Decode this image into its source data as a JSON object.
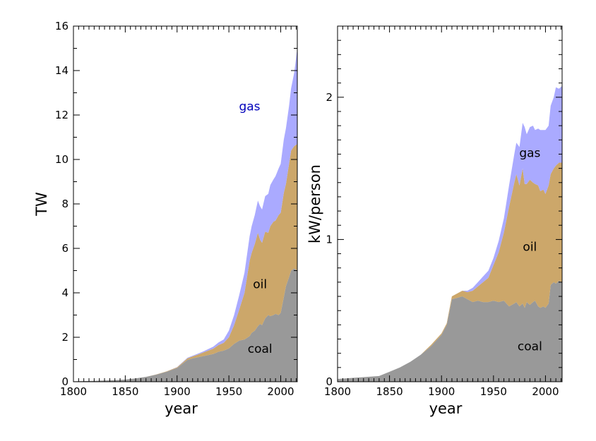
{
  "chart_data": [
    {
      "type": "area",
      "stacked": true,
      "xlabel": "year",
      "ylabel": "TW",
      "xlim": [
        1800,
        2016
      ],
      "ylim": [
        0,
        16
      ],
      "xticks": [
        1800,
        1850,
        1900,
        1950,
        2000
      ],
      "yticks": [
        0,
        2,
        4,
        6,
        8,
        10,
        12,
        14,
        16
      ],
      "x": [
        1800,
        1820,
        1840,
        1850,
        1860,
        1870,
        1880,
        1890,
        1900,
        1905,
        1910,
        1915,
        1920,
        1925,
        1930,
        1935,
        1940,
        1945,
        1950,
        1955,
        1960,
        1965,
        1970,
        1972,
        1975,
        1978,
        1980,
        1982,
        1985,
        1988,
        1990,
        1993,
        1995,
        1998,
        2000,
        2003,
        2005,
        2008,
        2010,
        2013,
        2016
      ],
      "series": [
        {
          "name": "coal",
          "color": "#999999",
          "values": [
            0.02,
            0.04,
            0.07,
            0.1,
            0.15,
            0.22,
            0.32,
            0.45,
            0.62,
            0.8,
            0.98,
            1.05,
            1.1,
            1.15,
            1.2,
            1.25,
            1.35,
            1.4,
            1.5,
            1.7,
            1.85,
            1.9,
            2.05,
            2.2,
            2.3,
            2.5,
            2.6,
            2.55,
            2.85,
            3.0,
            2.95,
            3.0,
            3.05,
            3.0,
            3.1,
            3.8,
            4.3,
            4.7,
            5.0,
            5.1,
            5.0
          ]
        },
        {
          "name": "oil",
          "color": "#cca76a",
          "values": [
            0,
            0,
            0,
            0,
            0,
            0,
            0.01,
            0.02,
            0.03,
            0.05,
            0.07,
            0.09,
            0.12,
            0.16,
            0.2,
            0.24,
            0.3,
            0.35,
            0.5,
            0.85,
            1.4,
            2.1,
            3.4,
            3.6,
            3.9,
            4.2,
            3.8,
            3.7,
            3.9,
            3.7,
            4.05,
            4.2,
            4.2,
            4.5,
            4.5,
            4.7,
            4.6,
            5.1,
            5.4,
            5.5,
            5.7
          ]
        },
        {
          "name": "gas",
          "color": "#aaaaff",
          "values": [
            0,
            0,
            0,
            0,
            0,
            0,
            0,
            0,
            0.01,
            0.02,
            0.03,
            0.03,
            0.04,
            0.05,
            0.07,
            0.09,
            0.12,
            0.15,
            0.3,
            0.45,
            0.65,
            0.9,
            1.1,
            1.2,
            1.3,
            1.45,
            1.5,
            1.5,
            1.6,
            1.75,
            1.85,
            1.9,
            2.0,
            2.1,
            2.2,
            2.4,
            2.5,
            2.6,
            2.8,
            3.3,
            4.3
          ]
        }
      ],
      "annotations": [
        {
          "text": "gas",
          "x": 1970,
          "y": 12.2,
          "color": "#0000bb"
        },
        {
          "text": "oil",
          "x": 1980,
          "y": 4.2,
          "color": "#000000"
        },
        {
          "text": "coal",
          "x": 1980,
          "y": 1.3,
          "color": "#000000"
        }
      ]
    },
    {
      "type": "area",
      "stacked": true,
      "xlabel": "year",
      "ylabel": "kW/person",
      "xlim": [
        1800,
        2016
      ],
      "ylim": [
        0,
        2.5
      ],
      "xticks": [
        1800,
        1850,
        1900,
        1950,
        2000
      ],
      "yticks": [
        0,
        1,
        2
      ],
      "x": [
        1800,
        1820,
        1840,
        1850,
        1860,
        1870,
        1880,
        1890,
        1900,
        1905,
        1910,
        1915,
        1920,
        1925,
        1930,
        1935,
        1940,
        1945,
        1950,
        1955,
        1960,
        1965,
        1970,
        1972,
        1975,
        1978,
        1980,
        1982,
        1985,
        1988,
        1990,
        1993,
        1995,
        1998,
        2000,
        2003,
        2005,
        2008,
        2010,
        2013,
        2016
      ],
      "series": [
        {
          "name": "coal",
          "color": "#999999",
          "values": [
            0.02,
            0.03,
            0.04,
            0.07,
            0.1,
            0.14,
            0.19,
            0.25,
            0.33,
            0.4,
            0.58,
            0.59,
            0.6,
            0.58,
            0.56,
            0.57,
            0.56,
            0.56,
            0.57,
            0.56,
            0.57,
            0.53,
            0.55,
            0.56,
            0.53,
            0.55,
            0.52,
            0.56,
            0.54,
            0.56,
            0.57,
            0.53,
            0.52,
            0.53,
            0.52,
            0.55,
            0.68,
            0.7,
            0.69,
            0.71,
            0.7
          ]
        },
        {
          "name": "oil",
          "color": "#cca76a",
          "values": [
            0,
            0,
            0,
            0,
            0,
            0,
            0,
            0.01,
            0.01,
            0.01,
            0.02,
            0.03,
            0.04,
            0.05,
            0.08,
            0.1,
            0.14,
            0.17,
            0.25,
            0.35,
            0.48,
            0.7,
            0.85,
            0.9,
            0.85,
            0.95,
            0.87,
            0.83,
            0.88,
            0.84,
            0.82,
            0.85,
            0.82,
            0.82,
            0.8,
            0.83,
            0.78,
            0.8,
            0.83,
            0.83,
            0.84
          ]
        },
        {
          "name": "gas",
          "color": "#aaaaff",
          "values": [
            0,
            0,
            0,
            0,
            0,
            0,
            0,
            0,
            0,
            0,
            0,
            0,
            0,
            0.01,
            0.02,
            0.03,
            0.04,
            0.05,
            0.05,
            0.08,
            0.1,
            0.15,
            0.2,
            0.22,
            0.27,
            0.32,
            0.4,
            0.35,
            0.37,
            0.4,
            0.38,
            0.4,
            0.43,
            0.42,
            0.45,
            0.42,
            0.48,
            0.5,
            0.55,
            0.52,
            0.54
          ]
        }
      ],
      "annotations": [
        {
          "text": "gas",
          "x": 1985,
          "y": 1.58,
          "color": "#000000"
        },
        {
          "text": "oil",
          "x": 1985,
          "y": 0.92,
          "color": "#000000"
        },
        {
          "text": "coal",
          "x": 1985,
          "y": 0.22,
          "color": "#000000"
        }
      ]
    }
  ]
}
